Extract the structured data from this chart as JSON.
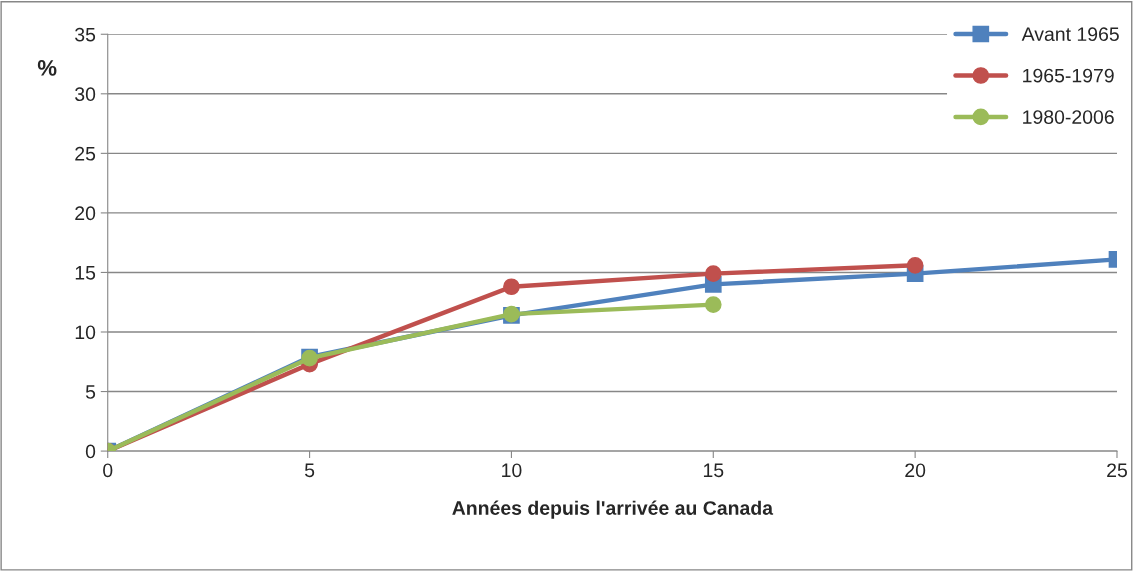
{
  "chart_data": {
    "type": "line",
    "xlabel": "Années depuis l'arrivée au Canada",
    "ylabel": "%",
    "x": [
      0,
      5,
      10,
      15,
      20,
      25
    ],
    "series": [
      {
        "name": "Avant 1965",
        "color": "#4f81bd",
        "marker": "square",
        "values": [
          0,
          7.9,
          11.4,
          14.0,
          14.9,
          16.1
        ]
      },
      {
        "name": "1965-1979",
        "color": "#c0504d",
        "marker": "circle",
        "values": [
          0,
          7.3,
          13.8,
          14.9,
          15.6,
          null
        ]
      },
      {
        "name": "1980-2006",
        "color": "#9bbb59",
        "marker": "circle",
        "values": [
          0,
          7.8,
          11.5,
          12.3,
          null,
          null
        ]
      }
    ],
    "xlim": [
      0,
      25
    ],
    "xticks": [
      0,
      5,
      10,
      15,
      20,
      25
    ],
    "ylim": [
      0,
      35
    ],
    "yticks": [
      0,
      5,
      10,
      15,
      20,
      25,
      30,
      35
    ],
    "grid": "y",
    "legend": "top right"
  }
}
